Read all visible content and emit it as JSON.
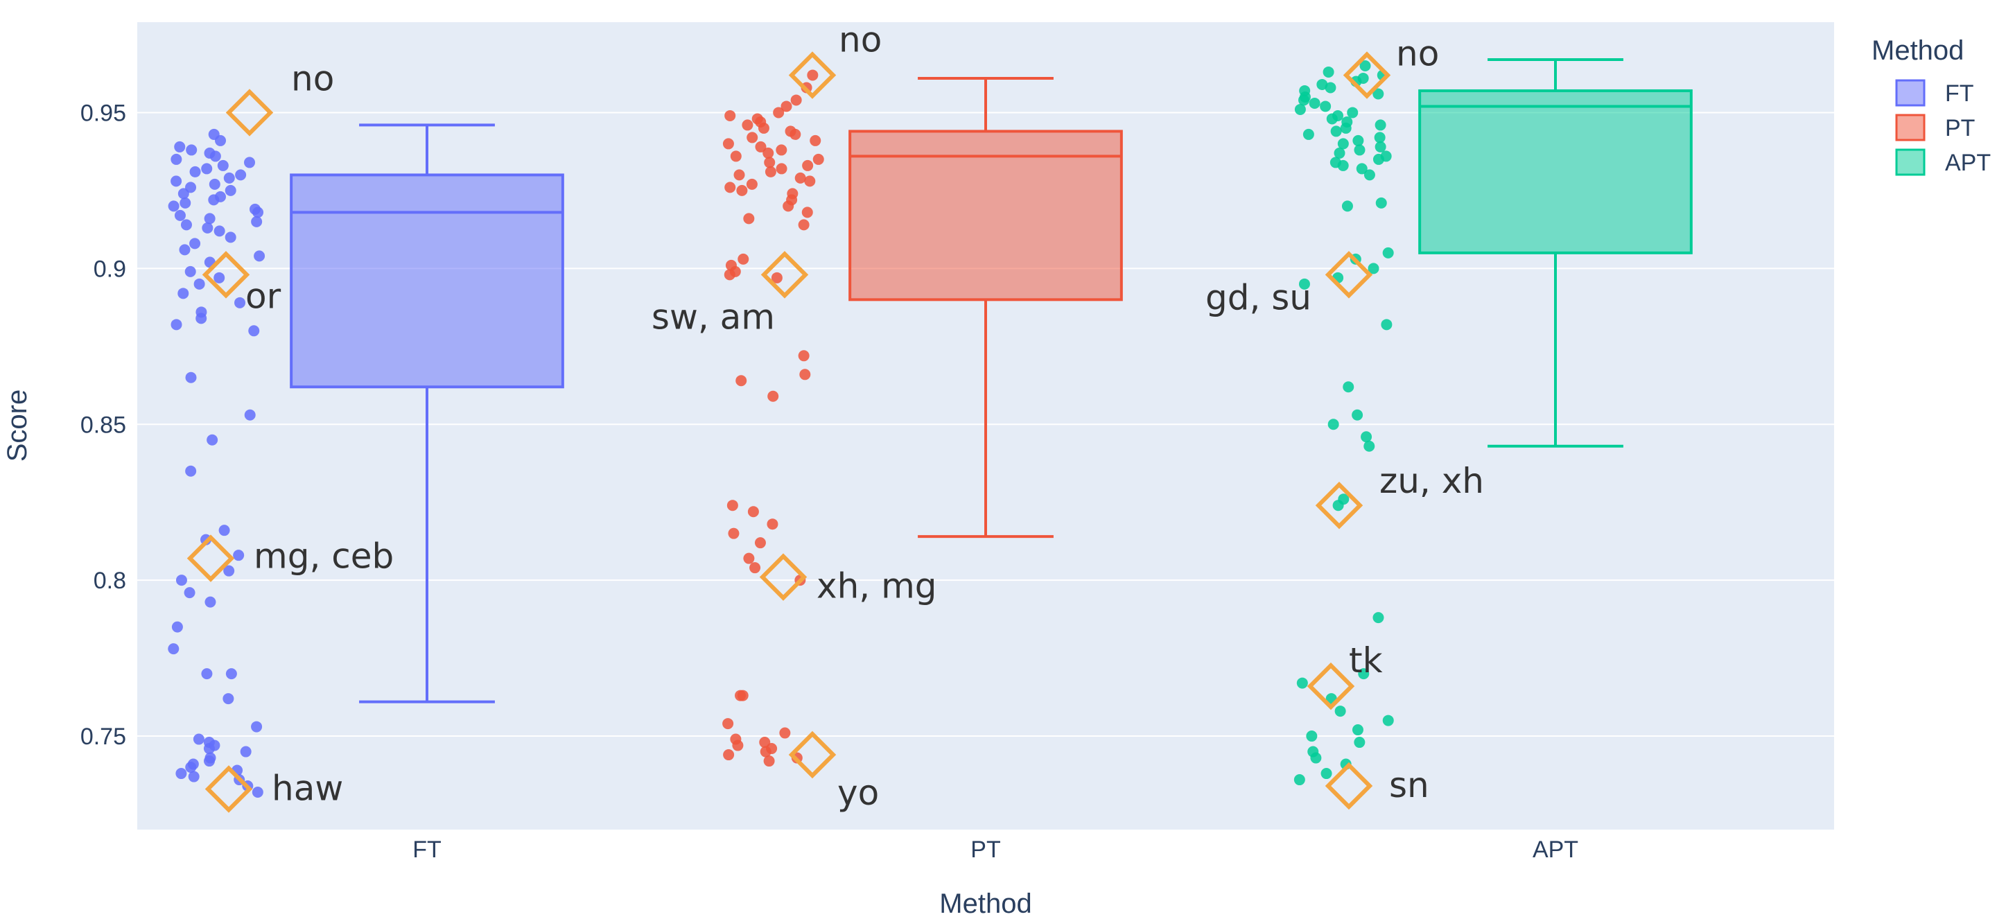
{
  "chart_data": {
    "type": "box",
    "title": "",
    "xlabel": "Method",
    "ylabel": "Score",
    "ylim": [
      0.72,
      0.979
    ],
    "yticks": [
      0.75,
      0.8,
      0.85,
      0.9,
      0.95
    ],
    "yticklabels": [
      "0.75",
      "0.8",
      "0.85",
      "0.9",
      "0.95"
    ],
    "grid": true,
    "legend": {
      "title": "Method",
      "placement": "right",
      "entries": [
        "FT",
        "PT",
        "APT"
      ]
    },
    "categories": [
      "FT",
      "PT",
      "APT"
    ],
    "series": [
      {
        "name": "FT",
        "color": "#636efa",
        "box": {
          "lowerfence": 0.761,
          "q1": 0.862,
          "median": 0.918,
          "q3": 0.93,
          "upperfence": 0.946
        },
        "points": [
          0.943,
          0.941,
          0.939,
          0.938,
          0.937,
          0.936,
          0.935,
          0.934,
          0.933,
          0.932,
          0.931,
          0.93,
          0.929,
          0.928,
          0.927,
          0.926,
          0.925,
          0.924,
          0.923,
          0.922,
          0.921,
          0.92,
          0.919,
          0.918,
          0.917,
          0.916,
          0.915,
          0.914,
          0.913,
          0.912,
          0.91,
          0.908,
          0.906,
          0.904,
          0.902,
          0.899,
          0.897,
          0.895,
          0.892,
          0.889,
          0.886,
          0.884,
          0.882,
          0.88,
          0.865,
          0.853,
          0.845,
          0.835,
          0.816,
          0.813,
          0.808,
          0.803,
          0.8,
          0.796,
          0.793,
          0.785,
          0.778,
          0.77,
          0.77,
          0.762,
          0.753,
          0.749,
          0.748,
          0.747,
          0.746,
          0.745,
          0.743,
          0.742,
          0.741,
          0.74,
          0.739,
          0.738,
          0.737,
          0.736,
          0.734,
          0.732
        ]
      },
      {
        "name": "PT",
        "color": "#ef553b",
        "box": {
          "lowerfence": 0.814,
          "q1": 0.89,
          "median": 0.936,
          "q3": 0.944,
          "upperfence": 0.961
        },
        "points": [
          0.962,
          0.958,
          0.954,
          0.952,
          0.95,
          0.949,
          0.948,
          0.947,
          0.946,
          0.945,
          0.944,
          0.943,
          0.942,
          0.941,
          0.94,
          0.939,
          0.938,
          0.937,
          0.936,
          0.935,
          0.934,
          0.933,
          0.932,
          0.931,
          0.93,
          0.929,
          0.928,
          0.927,
          0.926,
          0.925,
          0.924,
          0.922,
          0.92,
          0.918,
          0.916,
          0.914,
          0.903,
          0.901,
          0.899,
          0.898,
          0.897,
          0.872,
          0.866,
          0.864,
          0.859,
          0.824,
          0.822,
          0.818,
          0.815,
          0.812,
          0.807,
          0.804,
          0.8,
          0.763,
          0.763,
          0.754,
          0.751,
          0.749,
          0.748,
          0.747,
          0.746,
          0.745,
          0.744,
          0.743,
          0.742
        ]
      },
      {
        "name": "APT",
        "color": "#00cc96",
        "box": {
          "lowerfence": 0.843,
          "q1": 0.905,
          "median": 0.952,
          "q3": 0.957,
          "upperfence": 0.967
        },
        "points": [
          0.965,
          0.963,
          0.962,
          0.961,
          0.96,
          0.959,
          0.958,
          0.957,
          0.956,
          0.955,
          0.954,
          0.953,
          0.952,
          0.951,
          0.95,
          0.949,
          0.948,
          0.947,
          0.946,
          0.945,
          0.944,
          0.943,
          0.942,
          0.941,
          0.94,
          0.939,
          0.938,
          0.937,
          0.936,
          0.935,
          0.934,
          0.933,
          0.932,
          0.93,
          0.921,
          0.92,
          0.905,
          0.903,
          0.9,
          0.897,
          0.895,
          0.882,
          0.862,
          0.853,
          0.85,
          0.846,
          0.843,
          0.826,
          0.824,
          0.788,
          0.77,
          0.767,
          0.762,
          0.758,
          0.755,
          0.752,
          0.75,
          0.748,
          0.745,
          0.743,
          0.741,
          0.738,
          0.736
        ]
      }
    ],
    "annotations": [
      {
        "category": "FT",
        "y": 0.95,
        "text": "no"
      },
      {
        "category": "FT",
        "y": 0.898,
        "text": "or"
      },
      {
        "category": "FT",
        "y": 0.807,
        "text": "mg, ceb"
      },
      {
        "category": "FT",
        "y": 0.733,
        "text": "haw"
      },
      {
        "category": "PT",
        "y": 0.962,
        "text": "no"
      },
      {
        "category": "PT",
        "y": 0.898,
        "text": "sw, am"
      },
      {
        "category": "PT",
        "y": 0.801,
        "text": "xh, mg"
      },
      {
        "category": "PT",
        "y": 0.744,
        "text": "yo"
      },
      {
        "category": "APT",
        "y": 0.962,
        "text": "no"
      },
      {
        "category": "APT",
        "y": 0.898,
        "text": "gd, su"
      },
      {
        "category": "APT",
        "y": 0.824,
        "text": "zu, xh"
      },
      {
        "category": "APT",
        "y": 0.766,
        "text": "tk"
      },
      {
        "category": "APT",
        "y": 0.734,
        "text": "sn"
      }
    ],
    "highlight_marker": {
      "shape": "diamond",
      "color": "#f4a540"
    }
  },
  "colors": {
    "plot_background": "#e5ecf6",
    "grid": "#ffffff",
    "text": "#2a3f5f"
  }
}
